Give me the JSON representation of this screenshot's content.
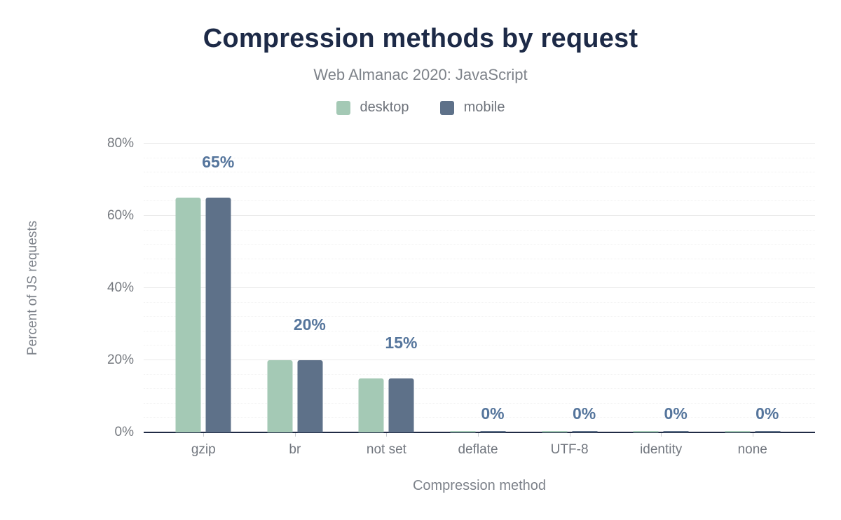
{
  "chart_data": {
    "type": "bar",
    "title": "Compression methods by request",
    "subtitle": "Web Almanac 2020: JavaScript",
    "xlabel": "Compression method",
    "ylabel": "Percent of JS requests",
    "categories": [
      "gzip",
      "br",
      "not set",
      "deflate",
      "UTF-8",
      "identity",
      "none"
    ],
    "series": [
      {
        "name": "desktop",
        "color": "#a4c9b5",
        "values": [
          65,
          20,
          15,
          0,
          0,
          0,
          0
        ]
      },
      {
        "name": "mobile",
        "color": "#5e7189",
        "values": [
          65,
          20,
          15,
          0,
          0,
          0,
          0
        ]
      }
    ],
    "data_labels": [
      "65%",
      "20%",
      "15%",
      "0%",
      "0%",
      "0%",
      "0%"
    ],
    "ylim": [
      0,
      80
    ],
    "y_ticks": [
      {
        "value": 0,
        "label": "0%"
      },
      {
        "value": 20,
        "label": "20%"
      },
      {
        "value": 40,
        "label": "40%"
      },
      {
        "value": 60,
        "label": "60%"
      },
      {
        "value": 80,
        "label": "80%"
      }
    ],
    "minor_grid_step": 4,
    "grid": "on",
    "legend_position": "top"
  },
  "colors": {
    "title": "#1d2a47",
    "subtitle": "#7e838a",
    "data_label": "#55759c",
    "axis_line": "#202b45",
    "tick_label": "#75797f",
    "desktop": "#a4c9b5",
    "mobile": "#5e7189"
  }
}
